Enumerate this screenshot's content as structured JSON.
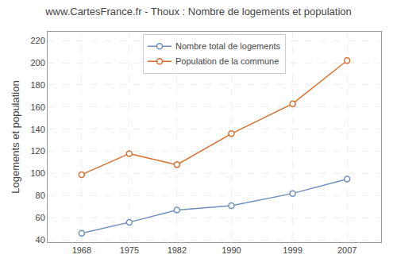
{
  "chart_data": {
    "type": "line",
    "title": "www.CartesFrance.fr - Thoux : Nombre de logements et population",
    "y_label": "Logements et population",
    "x": [
      1968,
      1975,
      1982,
      1990,
      1999,
      2007
    ],
    "series": [
      {
        "name": "Nombre total de logements",
        "color": "#6e8fbf",
        "marker": "circle",
        "values": [
          46,
          56,
          67,
          71,
          82,
          95
        ]
      },
      {
        "name": "Population de la commune",
        "color": "#d96f2a",
        "marker": "circle",
        "values": [
          99,
          118,
          108,
          136,
          163,
          202
        ]
      }
    ],
    "xlim": [
      1963,
      2012
    ],
    "xticks": [
      1968,
      1975,
      1982,
      1990,
      1999,
      2007
    ],
    "ylim": [
      38,
      228
    ],
    "yticks": [
      40,
      60,
      80,
      100,
      120,
      140,
      160,
      180,
      200,
      220
    ],
    "grid": true,
    "legend": "upper center"
  }
}
